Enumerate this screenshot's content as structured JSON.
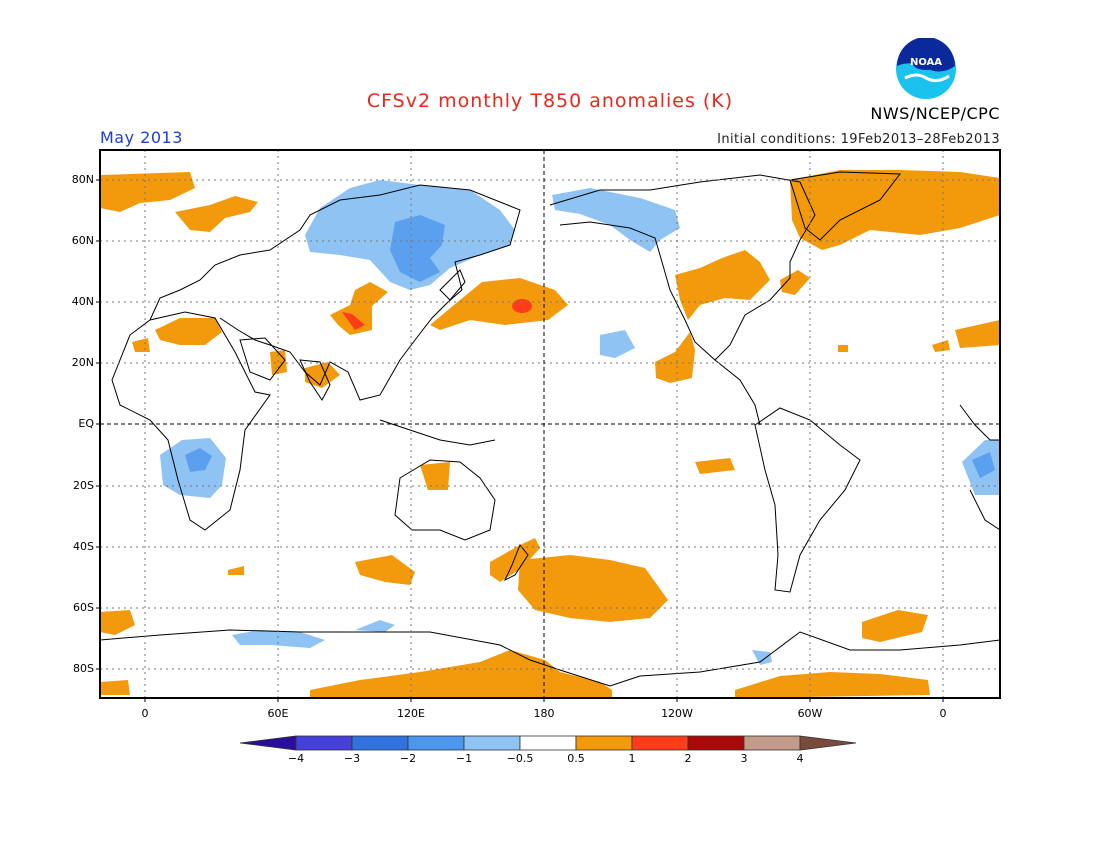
{
  "title": "CFSv2 monthly T850 anomalies (K)",
  "valid_month": "May 2013",
  "initial_conditions": "Initial conditions: 19Feb2013–28Feb2013",
  "agency": "NWS/NCEP/CPC",
  "logo_text": "NOAA",
  "colors": {
    "title": "#e8271d",
    "month": "#1c3ed8",
    "anom_pos_0_5_1": "#f39a0c",
    "anom_pos_1_2": "#ff3c1a",
    "anom_neg_0_5_1": "#8fc3f3",
    "anom_neg_1_2": "#5aa0ee"
  },
  "map": {
    "lat_labels": [
      "80N",
      "60N",
      "40N",
      "20N",
      "EQ",
      "20S",
      "40S",
      "60S",
      "80S"
    ],
    "lon_labels": [
      "0",
      "60E",
      "120E",
      "180",
      "120W",
      "60W",
      "0"
    ]
  },
  "colorbar": {
    "tick_labels": [
      "−4",
      "−3",
      "−2",
      "−1",
      "−0.5",
      "0.5",
      "1",
      "2",
      "3",
      "4"
    ],
    "colors": [
      "#2c0c9c",
      "#4440d8",
      "#2f72e0",
      "#4c97ee",
      "#8fc3f3",
      "#ffffff",
      "#f39a0c",
      "#ff3c1a",
      "#a80a0a",
      "#c39b8a",
      "#7a4b3c"
    ]
  }
}
